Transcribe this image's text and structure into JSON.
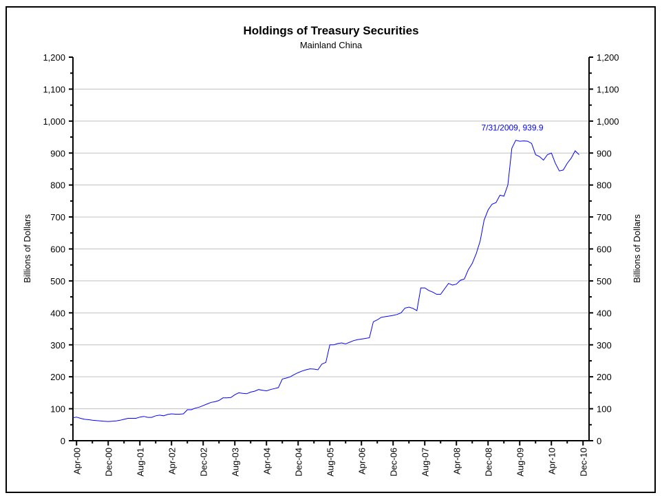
{
  "chart_data": {
    "type": "line",
    "title": "Holdings of Treasury Securities",
    "subtitle": "Mainland China",
    "ylabel": "Billions of Dollars",
    "ylabel_right": "Billions of Dollars",
    "xlabel": "",
    "ylim": [
      0,
      1200
    ],
    "yticks": [
      0,
      100,
      200,
      300,
      400,
      500,
      600,
      700,
      800,
      900,
      1000,
      1100,
      1200
    ],
    "ytick_labels": [
      "0",
      "100",
      "200",
      "300",
      "400",
      "500",
      "600",
      "700",
      "800",
      "900",
      "1,000",
      "1,100",
      "1,200"
    ],
    "xtick_labels": [
      "Apr-00",
      "Dec-00",
      "Aug-01",
      "Apr-02",
      "Dec-02",
      "Aug-03",
      "Apr-04",
      "Dec-04",
      "Aug-05",
      "Apr-06",
      "Dec-06",
      "Aug-07",
      "Apr-08",
      "Dec-08",
      "Aug-09",
      "Apr-10",
      "Dec-10"
    ],
    "x_start": "Mar-00",
    "x_frequency": "monthly",
    "grid": true,
    "annotation": "7/31/2009, 939.9",
    "series": [
      {
        "name": "Mainland China",
        "color": "#0000ff",
        "values": [
          72,
          74,
          70,
          67,
          66,
          64,
          63,
          62,
          61,
          60,
          61,
          62,
          64,
          67,
          70,
          70,
          70,
          74,
          76,
          73,
          73,
          78,
          80,
          78,
          82,
          84,
          83,
          83,
          84,
          97,
          97,
          102,
          105,
          110,
          115,
          120,
          122,
          126,
          134,
          134,
          135,
          144,
          150,
          148,
          147,
          152,
          155,
          160,
          158,
          156,
          160,
          163,
          166,
          193,
          196,
          200,
          207,
          213,
          218,
          222,
          225,
          224,
          222,
          240,
          245,
          300,
          300,
          304,
          306,
          303,
          308,
          313,
          316,
          318,
          320,
          322,
          372,
          378,
          386,
          388,
          390,
          392,
          395,
          400,
          415,
          418,
          414,
          407,
          478,
          478,
          470,
          465,
          458,
          458,
          475,
          492,
          487,
          490,
          502,
          506,
          535,
          555,
          585,
          625,
          690,
          722,
          740,
          745,
          768,
          765,
          800,
          915,
          939.9,
          937,
          938,
          937,
          930,
          895,
          889,
          878,
          895,
          900,
          868,
          844,
          847,
          868,
          884,
          907,
          895
        ]
      }
    ]
  }
}
